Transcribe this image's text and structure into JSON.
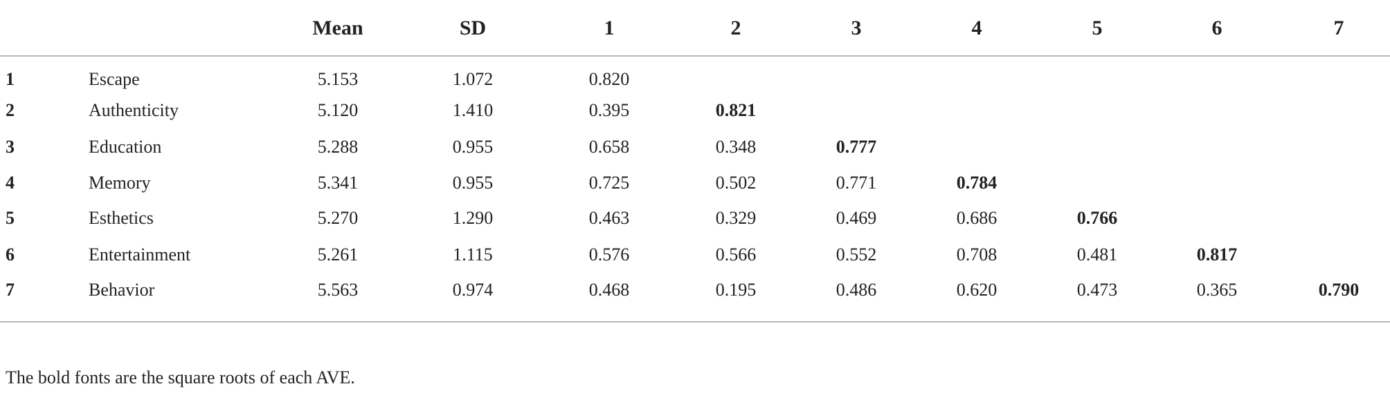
{
  "table": {
    "header": [
      "Mean",
      "SD",
      "1",
      "2",
      "3",
      "4",
      "5",
      "6",
      "7"
    ],
    "rows": [
      {
        "number": "1",
        "label": "Escape",
        "values": [
          "5.153",
          "1.072",
          "0.820"
        ]
      },
      {
        "number": "2",
        "label": "Authenticity",
        "values": [
          "5.120",
          "1.410",
          "0.395",
          "0.821"
        ]
      },
      {
        "number": "3",
        "label": "Education",
        "values": [
          "5.288",
          "0.955",
          "0.658",
          "0.348",
          "0.777"
        ]
      },
      {
        "number": "4",
        "label": "Memory",
        "values": [
          "5.341",
          "0.955",
          "0.725",
          "0.502",
          "0.771",
          "0.784"
        ]
      },
      {
        "number": "5",
        "label": "Esthetics",
        "values": [
          "5.270",
          "1.290",
          "0.463",
          "0.329",
          "0.469",
          "0.686",
          "0.766"
        ]
      },
      {
        "number": "6",
        "label": "Entertainment",
        "values": [
          "5.261",
          "1.115",
          "0.576",
          "0.566",
          "0.552",
          "0.708",
          "0.481",
          "0.817"
        ]
      },
      {
        "number": "7",
        "label": "Behavior",
        "values": [
          "5.563",
          "0.974",
          "0.468",
          "0.195",
          "0.486",
          "0.620",
          "0.473",
          "0.365",
          "0.790"
        ]
      }
    ]
  },
  "note": "The bold fonts are the square roots of each AVE."
}
